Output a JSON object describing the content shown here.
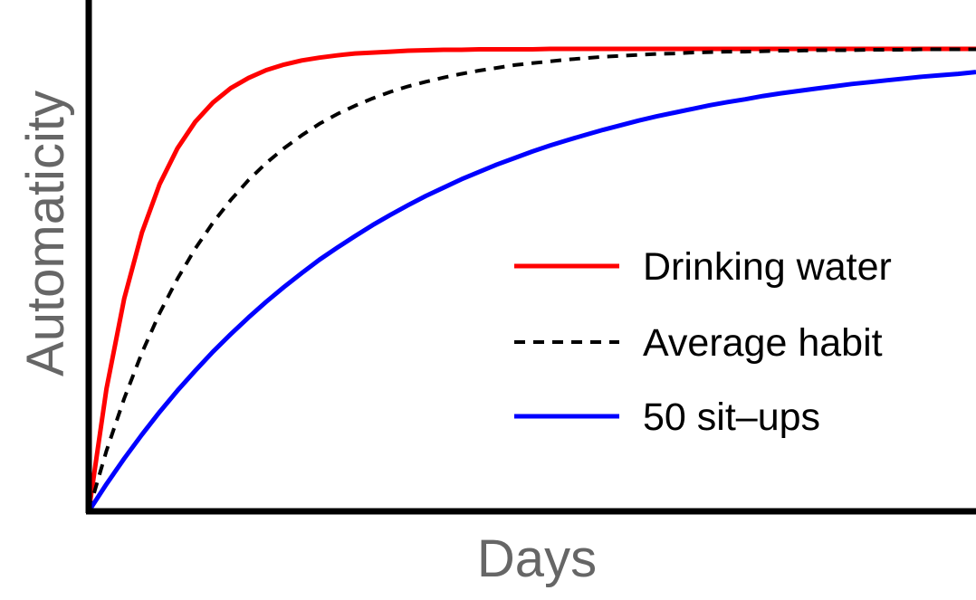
{
  "chart_data": {
    "type": "line",
    "title": "",
    "xlabel": "Days",
    "ylabel": "Automaticity",
    "xlim": [
      0,
      100
    ],
    "ylim": [
      0,
      100
    ],
    "grid": false,
    "legend_position": "lower-right",
    "x": [
      0,
      2,
      4,
      6,
      8,
      10,
      12,
      14,
      16,
      18,
      20,
      22,
      24,
      26,
      28,
      30,
      32,
      34,
      36,
      38,
      40,
      42,
      44,
      46,
      48,
      50,
      52,
      54,
      56,
      58,
      60,
      62,
      64,
      66,
      68,
      70,
      72,
      74,
      76,
      78,
      80,
      82,
      84,
      86,
      88,
      90,
      92,
      94,
      96,
      98,
      100
    ],
    "series": [
      {
        "name": "Drinking water",
        "color": "#ff0000",
        "dash": "solid",
        "values": [
          0.0,
          26.5,
          46.0,
          60.3,
          70.8,
          78.5,
          84.2,
          88.4,
          91.5,
          93.7,
          95.4,
          96.6,
          97.5,
          98.1,
          98.6,
          99.0,
          99.2,
          99.4,
          99.6,
          99.7,
          99.8,
          99.8,
          99.9,
          99.9,
          99.9,
          99.9,
          100.0,
          100.0,
          100.0,
          100.0,
          100.0,
          100.0,
          100.0,
          100.0,
          100.0,
          100.0,
          100.0,
          100.0,
          100.0,
          100.0,
          100.0,
          100.0,
          100.0,
          100.0,
          100.0,
          100.0,
          100.0,
          100.0,
          100.0,
          100.0,
          100.0
        ]
      },
      {
        "name": "Average habit",
        "color": "#000000",
        "dash": "dashed",
        "values": [
          0.0,
          13.1,
          24.4,
          34.3,
          42.9,
          50.3,
          56.8,
          62.4,
          67.3,
          71.6,
          75.3,
          78.5,
          81.3,
          83.8,
          85.9,
          87.7,
          89.3,
          90.7,
          91.9,
          92.9,
          93.8,
          94.6,
          95.3,
          95.9,
          96.5,
          96.9,
          97.3,
          97.7,
          98.0,
          98.3,
          98.5,
          98.7,
          98.9,
          99.0,
          99.2,
          99.3,
          99.4,
          99.4,
          99.5,
          99.6,
          99.6,
          99.7,
          99.7,
          99.7,
          99.8,
          99.8,
          99.8,
          99.9,
          99.9,
          99.9,
          99.9
        ]
      },
      {
        "name": "50 sit–ups",
        "color": "#0000ff",
        "dash": "solid",
        "values": [
          0.0,
          5.9,
          11.4,
          16.6,
          21.5,
          26.1,
          30.4,
          34.5,
          38.3,
          41.9,
          45.3,
          48.5,
          51.5,
          54.4,
          57.0,
          59.5,
          61.9,
          64.1,
          66.2,
          68.2,
          70.0,
          71.8,
          73.4,
          75.0,
          76.4,
          77.8,
          79.1,
          80.3,
          81.4,
          82.5,
          83.5,
          84.5,
          85.4,
          86.2,
          87.0,
          87.8,
          88.5,
          89.1,
          89.8,
          90.4,
          90.9,
          91.4,
          91.9,
          92.4,
          92.8,
          93.2,
          93.6,
          94.0,
          94.3,
          94.6,
          95.0
        ]
      }
    ]
  }
}
